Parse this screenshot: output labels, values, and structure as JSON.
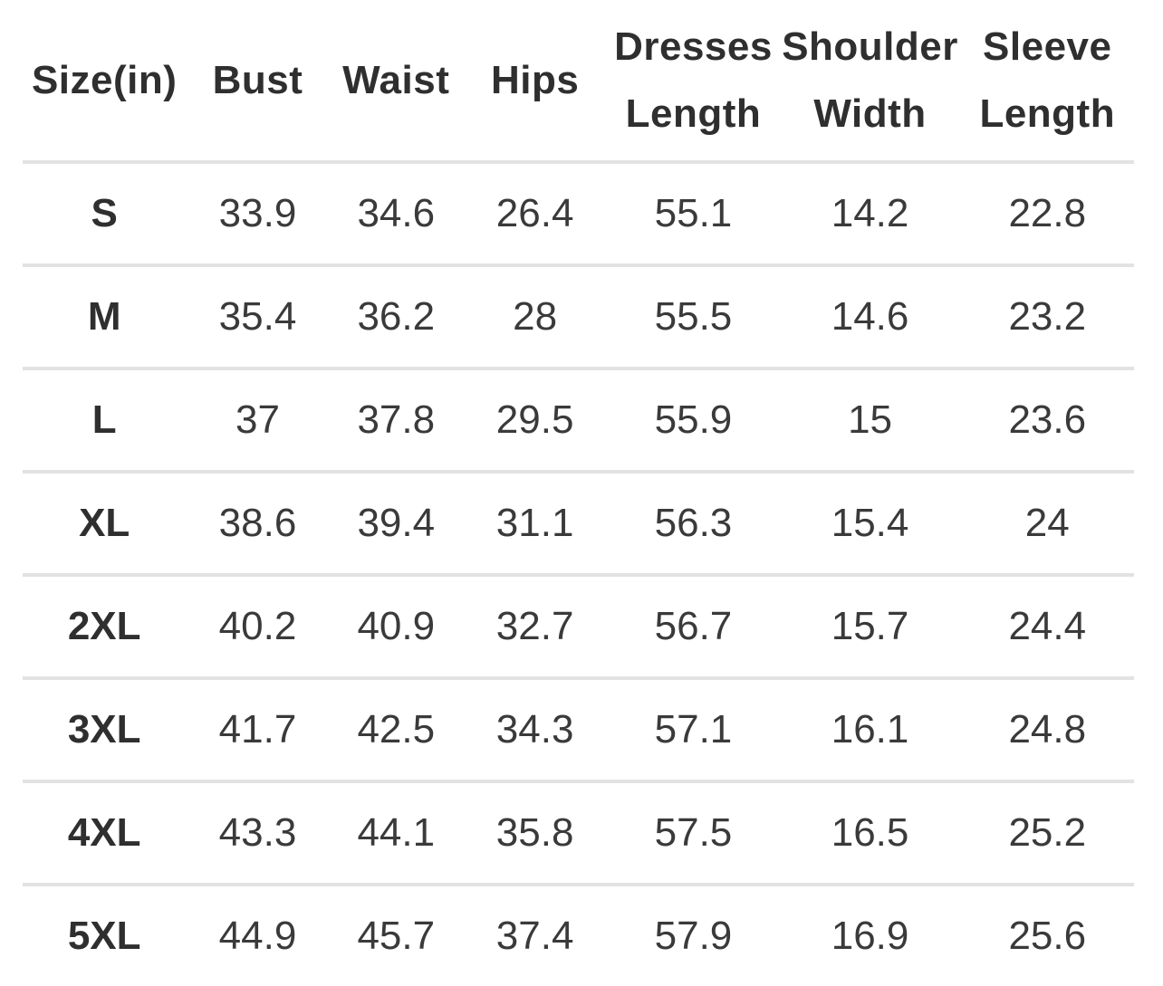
{
  "size_chart": {
    "columns": [
      {
        "label": "Size(in)"
      },
      {
        "label": "Bust"
      },
      {
        "label": "Waist"
      },
      {
        "label": "Hips"
      },
      {
        "label": "Dresses Length"
      },
      {
        "label": "Shoulder Width"
      },
      {
        "label": "Sleeve Length"
      }
    ],
    "rows": [
      {
        "size": "S",
        "values": [
          "33.9",
          "34.6",
          "26.4",
          "55.1",
          "14.2",
          "22.8"
        ]
      },
      {
        "size": "M",
        "values": [
          "35.4",
          "36.2",
          "28",
          "55.5",
          "14.6",
          "23.2"
        ]
      },
      {
        "size": "L",
        "values": [
          "37",
          "37.8",
          "29.5",
          "55.9",
          "15",
          "23.6"
        ]
      },
      {
        "size": "XL",
        "values": [
          "38.6",
          "39.4",
          "31.1",
          "56.3",
          "15.4",
          "24"
        ]
      },
      {
        "size": "2XL",
        "values": [
          "40.2",
          "40.9",
          "32.7",
          "56.7",
          "15.7",
          "24.4"
        ]
      },
      {
        "size": "3XL",
        "values": [
          "41.7",
          "42.5",
          "34.3",
          "57.1",
          "16.1",
          "24.8"
        ]
      },
      {
        "size": "4XL",
        "values": [
          "43.3",
          "44.1",
          "35.8",
          "57.5",
          "16.5",
          "25.2"
        ]
      },
      {
        "size": "5XL",
        "values": [
          "44.9",
          "45.7",
          "37.4",
          "57.9",
          "16.9",
          "25.6"
        ]
      }
    ],
    "colors": {
      "text": "#333333",
      "header_text": "#2f2f2f",
      "divider": "#e2e2e2",
      "background": "#ffffff"
    }
  }
}
